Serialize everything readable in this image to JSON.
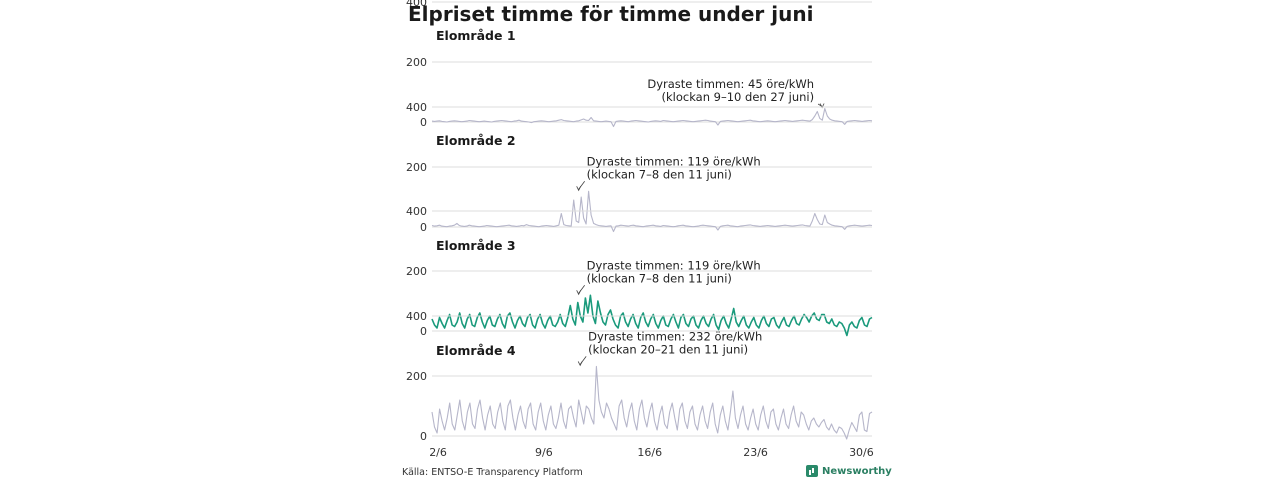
{
  "title": "Elpriset timme för timme under juni",
  "source": "Källa: ENTSO-E Transparency Platform",
  "brand": "Newsworthy",
  "colors": {
    "highlight": "#1a9a7c",
    "muted": "#b6b6ca",
    "grid": "#dcdcdc"
  },
  "chart_data": {
    "type": "line",
    "ylim": [
      0,
      400
    ],
    "yticks": [
      0,
      200,
      400
    ],
    "xlim": [
      1.6,
      30.7
    ],
    "xticks": [
      {
        "day": 2,
        "label": "2/6"
      },
      {
        "day": 9,
        "label": "9/6"
      },
      {
        "day": 16,
        "label": "16/6"
      },
      {
        "day": 23,
        "label": "23/6"
      },
      {
        "day": 30,
        "label": "30/6"
      }
    ],
    "series": [
      {
        "name": "Elområde 1",
        "highlight": false,
        "peak": {
          "day": 27.4,
          "value": 45
        },
        "annotation": [
          "Dyraste timmen: 45 öre/kWh",
          "(klockan 9–10 den 27 juni)"
        ],
        "values": [
          3,
          2,
          3,
          4,
          2,
          1,
          0,
          2,
          3,
          4,
          3,
          2,
          1,
          2,
          3,
          5,
          4,
          3,
          2,
          1,
          2,
          3,
          2,
          1,
          0,
          2,
          3,
          4,
          5,
          4,
          3,
          2,
          1,
          3,
          4,
          6,
          3,
          2,
          1,
          0,
          -2,
          1,
          2,
          3,
          4,
          3,
          2,
          1,
          2,
          3,
          4,
          6,
          8,
          5,
          4,
          3,
          2,
          1,
          3,
          4,
          7,
          10,
          6,
          5,
          15,
          4,
          3,
          2,
          1,
          2,
          3,
          2,
          1,
          -15,
          2,
          3,
          4,
          3,
          2,
          1,
          3,
          4,
          5,
          4,
          3,
          2,
          1,
          0,
          2,
          3,
          4,
          3,
          2,
          5,
          4,
          3,
          2,
          1,
          2,
          3,
          4,
          5,
          4,
          3,
          2,
          1,
          2,
          3,
          4,
          5,
          6,
          5,
          3,
          2,
          1,
          -10,
          2,
          3,
          4,
          5,
          4,
          3,
          2,
          1,
          2,
          3,
          4,
          5,
          6,
          4,
          3,
          2,
          1,
          2,
          3,
          4,
          3,
          2,
          1,
          2,
          3,
          4,
          5,
          4,
          3,
          2,
          3,
          4,
          5,
          6,
          5,
          4,
          3,
          8,
          20,
          35,
          12,
          6,
          45,
          20,
          10,
          6,
          4,
          3,
          2,
          1,
          -8,
          2,
          3,
          4,
          5,
          4,
          3,
          2,
          3,
          4,
          5,
          4
        ]
      },
      {
        "name": "Elområde 2",
        "highlight": false,
        "peak": {
          "day": 11.3,
          "value": 119
        },
        "annotation": [
          "Dyraste timmen: 119 öre/kWh",
          "(klockan 7–8 den 11 juni)"
        ],
        "values": [
          5,
          3,
          4,
          6,
          3,
          2,
          1,
          3,
          4,
          6,
          12,
          5,
          3,
          2,
          3,
          6,
          4,
          3,
          2,
          1,
          2,
          3,
          5,
          4,
          3,
          2,
          1,
          2,
          3,
          4,
          5,
          6,
          4,
          3,
          2,
          3,
          5,
          4,
          8,
          5,
          4,
          3,
          2,
          1,
          3,
          4,
          5,
          4,
          3,
          2,
          4,
          6,
          45,
          8,
          5,
          4,
          3,
          90,
          20,
          15,
          100,
          30,
          10,
          119,
          40,
          12,
          8,
          5,
          4,
          3,
          2,
          3,
          4,
          -15,
          3,
          4,
          6,
          5,
          4,
          3,
          5,
          6,
          4,
          3,
          2,
          1,
          3,
          4,
          5,
          6,
          4,
          3,
          2,
          5,
          4,
          3,
          2,
          1,
          2,
          4,
          5,
          6,
          4,
          3,
          2,
          1,
          2,
          3,
          5,
          6,
          5,
          4,
          3,
          2,
          1,
          -10,
          2,
          4,
          5,
          6,
          4,
          3,
          2,
          1,
          3,
          4,
          5,
          6,
          7,
          5,
          4,
          3,
          2,
          3,
          4,
          5,
          4,
          3,
          2,
          3,
          4,
          5,
          6,
          5,
          4,
          3,
          4,
          5,
          6,
          7,
          5,
          4,
          3,
          20,
          45,
          25,
          10,
          8,
          40,
          15,
          10,
          6,
          4,
          3,
          2,
          1,
          -8,
          2,
          4,
          5,
          6,
          5,
          4,
          3,
          4,
          5,
          6,
          5
        ]
      },
      {
        "name": "Elområde 3",
        "highlight": true,
        "peak": {
          "day": 11.3,
          "value": 119
        },
        "annotation": [
          "Dyraste timmen: 119 öre/kWh",
          "(klockan 7–8 den 11 juni)"
        ],
        "values": [
          40,
          20,
          10,
          45,
          25,
          10,
          35,
          55,
          20,
          15,
          30,
          60,
          25,
          10,
          40,
          55,
          20,
          15,
          45,
          60,
          30,
          10,
          35,
          50,
          20,
          15,
          40,
          55,
          25,
          10,
          50,
          60,
          30,
          10,
          35,
          50,
          25,
          15,
          45,
          55,
          20,
          10,
          40,
          55,
          25,
          10,
          35,
          50,
          20,
          15,
          30,
          55,
          25,
          15,
          45,
          85,
          40,
          20,
          95,
          50,
          30,
          110,
          60,
          119,
          50,
          25,
          100,
          60,
          30,
          20,
          55,
          70,
          40,
          20,
          10,
          50,
          60,
          30,
          15,
          40,
          55,
          25,
          10,
          45,
          60,
          30,
          15,
          40,
          55,
          25,
          10,
          35,
          50,
          20,
          15,
          40,
          55,
          30,
          10,
          45,
          55,
          25,
          15,
          40,
          50,
          20,
          10,
          35,
          50,
          25,
          15,
          40,
          55,
          20,
          5,
          35,
          50,
          25,
          10,
          40,
          75,
          30,
          15,
          35,
          50,
          20,
          10,
          30,
          45,
          20,
          10,
          35,
          50,
          25,
          15,
          40,
          45,
          20,
          10,
          30,
          45,
          20,
          15,
          35,
          50,
          25,
          20,
          40,
          55,
          45,
          30,
          50,
          60,
          40,
          35,
          55,
          55,
          30,
          25,
          40,
          20,
          15,
          30,
          25,
          10,
          -15,
          20,
          30,
          15,
          10,
          35,
          45,
          20,
          15,
          40,
          45
        ]
      },
      {
        "name": "Elområde 4",
        "highlight": false,
        "peak": {
          "day": 11.4,
          "value": 232
        },
        "annotation": [
          "Dyraste timmen: 232 öre/kWh",
          "(klockan 20–21 den 11 juni)"
        ],
        "values": [
          80,
          30,
          10,
          90,
          50,
          20,
          60,
          110,
          40,
          20,
          70,
          120,
          50,
          20,
          80,
          110,
          40,
          25,
          90,
          120,
          60,
          20,
          70,
          100,
          40,
          25,
          80,
          110,
          50,
          20,
          100,
          120,
          60,
          20,
          70,
          100,
          50,
          25,
          90,
          110,
          40,
          20,
          80,
          110,
          50,
          20,
          70,
          100,
          40,
          25,
          60,
          110,
          50,
          25,
          90,
          100,
          60,
          30,
          120,
          80,
          40,
          100,
          90,
          60,
          40,
          232,
          120,
          80,
          60,
          110,
          90,
          60,
          40,
          20,
          100,
          120,
          60,
          30,
          80,
          110,
          50,
          20,
          90,
          120,
          60,
          30,
          80,
          110,
          50,
          20,
          70,
          100,
          40,
          25,
          80,
          110,
          60,
          20,
          90,
          110,
          50,
          25,
          80,
          100,
          40,
          20,
          70,
          100,
          50,
          25,
          80,
          110,
          40,
          10,
          70,
          100,
          50,
          20,
          80,
          150,
          60,
          25,
          70,
          100,
          40,
          20,
          60,
          90,
          40,
          20,
          70,
          100,
          50,
          25,
          80,
          90,
          40,
          20,
          60,
          90,
          40,
          25,
          70,
          100,
          50,
          30,
          80,
          70,
          40,
          20,
          50,
          60,
          40,
          30,
          45,
          55,
          30,
          20,
          40,
          20,
          10,
          30,
          25,
          10,
          -10,
          20,
          45,
          30,
          15,
          70,
          80,
          20,
          15,
          75,
          80
        ]
      }
    ]
  }
}
